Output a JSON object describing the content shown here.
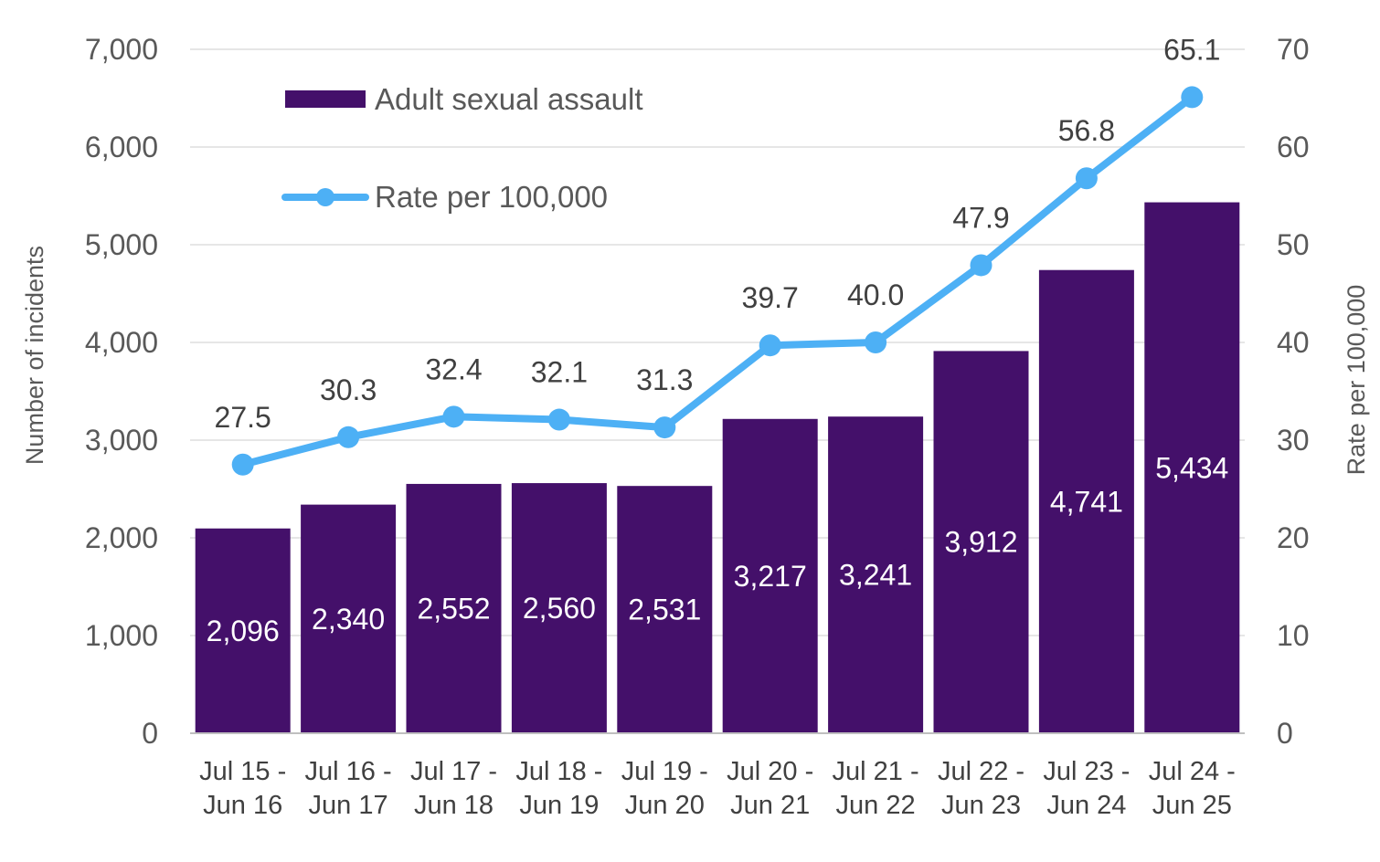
{
  "chart_data": {
    "type": "bar",
    "categories": [
      [
        "Jul 15 -",
        "Jun 16"
      ],
      [
        "Jul 16 -",
        "Jun 17"
      ],
      [
        "Jul 17 -",
        "Jun 18"
      ],
      [
        "Jul 18 -",
        "Jun 19"
      ],
      [
        "Jul 19 -",
        "Jun 20"
      ],
      [
        "Jul 20 -",
        "Jun 21"
      ],
      [
        "Jul 21 -",
        "Jun 22"
      ],
      [
        "Jul 22 -",
        "Jun 23"
      ],
      [
        "Jul 23 -",
        "Jun 24"
      ],
      [
        "Jul 24 -",
        "Jun 25"
      ]
    ],
    "series": [
      {
        "name": "Adult sexual assault",
        "type": "bar",
        "axis": "left",
        "color": "#44106A",
        "values": [
          2096,
          2340,
          2552,
          2560,
          2531,
          3217,
          3241,
          3912,
          4741,
          5434
        ],
        "labels": [
          "2,096",
          "2,340",
          "2,552",
          "2,560",
          "2,531",
          "3,217",
          "3,241",
          "3,912",
          "4,741",
          "5,434"
        ]
      },
      {
        "name": "Rate per 100,000",
        "type": "line",
        "axis": "right",
        "color": "#4DB0F5",
        "values": [
          27.5,
          30.3,
          32.4,
          32.1,
          31.3,
          39.7,
          40.0,
          47.9,
          56.8,
          65.1
        ],
        "labels": [
          "27.5",
          "30.3",
          "32.4",
          "32.1",
          "31.3",
          "39.7",
          "40.0",
          "47.9",
          "56.8",
          "65.1"
        ]
      }
    ],
    "y_left": {
      "title": "Number of incidents",
      "range": [
        0,
        7000
      ],
      "ticks": [
        "0",
        "1,000",
        "2,000",
        "3,000",
        "4,000",
        "5,000",
        "6,000",
        "7,000"
      ]
    },
    "y_right": {
      "title": "Rate per 100,000",
      "range": [
        0,
        70
      ],
      "ticks": [
        "0",
        "10",
        "20",
        "30",
        "40",
        "50",
        "60",
        "70"
      ]
    },
    "grid": true,
    "legend_position": "top-left"
  }
}
